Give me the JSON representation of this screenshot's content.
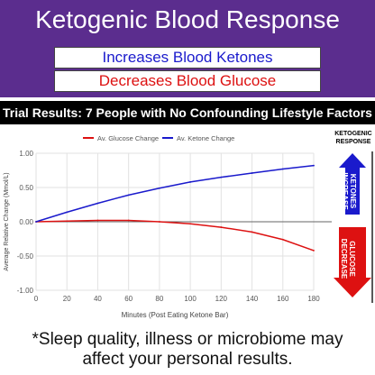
{
  "header": {
    "title": "Ketogenic Blood Response",
    "increase_label": "Increases Blood Ketones",
    "decrease_label": "Decreases Blood Glucose"
  },
  "trial_banner": "Trial Results: 7 People with No Confounding Lifestyle Factors",
  "side_panel": {
    "title_line1": "KETOGENIC",
    "title_line2": "RESPONSE",
    "up_line1": "KETONES",
    "up_line2": "INCREASE",
    "down_line1": "GLUCOSE",
    "down_line2": "DECREASE",
    "up_color": "#1a1acc",
    "down_color": "#dd1111"
  },
  "footnote_line1": "*Sleep quality, illness or microbiome may",
  "footnote_line2": "affect your personal results.",
  "chart_data": {
    "type": "line",
    "title": "",
    "xlabel": "Minutes (Post Eating Ketone Bar)",
    "ylabel": "Average Relative Change (Mmol/L)",
    "xlim": [
      0,
      180
    ],
    "ylim": [
      -1.0,
      1.0
    ],
    "x_ticks": [
      "0",
      "20",
      "40",
      "60",
      "80",
      "100",
      "120",
      "140",
      "160",
      "180"
    ],
    "y_ticks": [
      "1.00",
      "0.50",
      "0.00",
      "-0.50",
      "-1.00"
    ],
    "grid": true,
    "legend_position": "top",
    "x": [
      0,
      20,
      40,
      60,
      80,
      100,
      120,
      140,
      160,
      180
    ],
    "series": [
      {
        "name": "Av. Glucose Change",
        "color": "#dd1111",
        "values": [
          0.0,
          0.01,
          0.02,
          0.02,
          0.0,
          -0.03,
          -0.08,
          -0.15,
          -0.26,
          -0.42
        ]
      },
      {
        "name": "Av. Ketone Change",
        "color": "#1a1acc",
        "values": [
          0.0,
          0.14,
          0.27,
          0.39,
          0.49,
          0.58,
          0.65,
          0.71,
          0.77,
          0.82
        ]
      }
    ]
  }
}
